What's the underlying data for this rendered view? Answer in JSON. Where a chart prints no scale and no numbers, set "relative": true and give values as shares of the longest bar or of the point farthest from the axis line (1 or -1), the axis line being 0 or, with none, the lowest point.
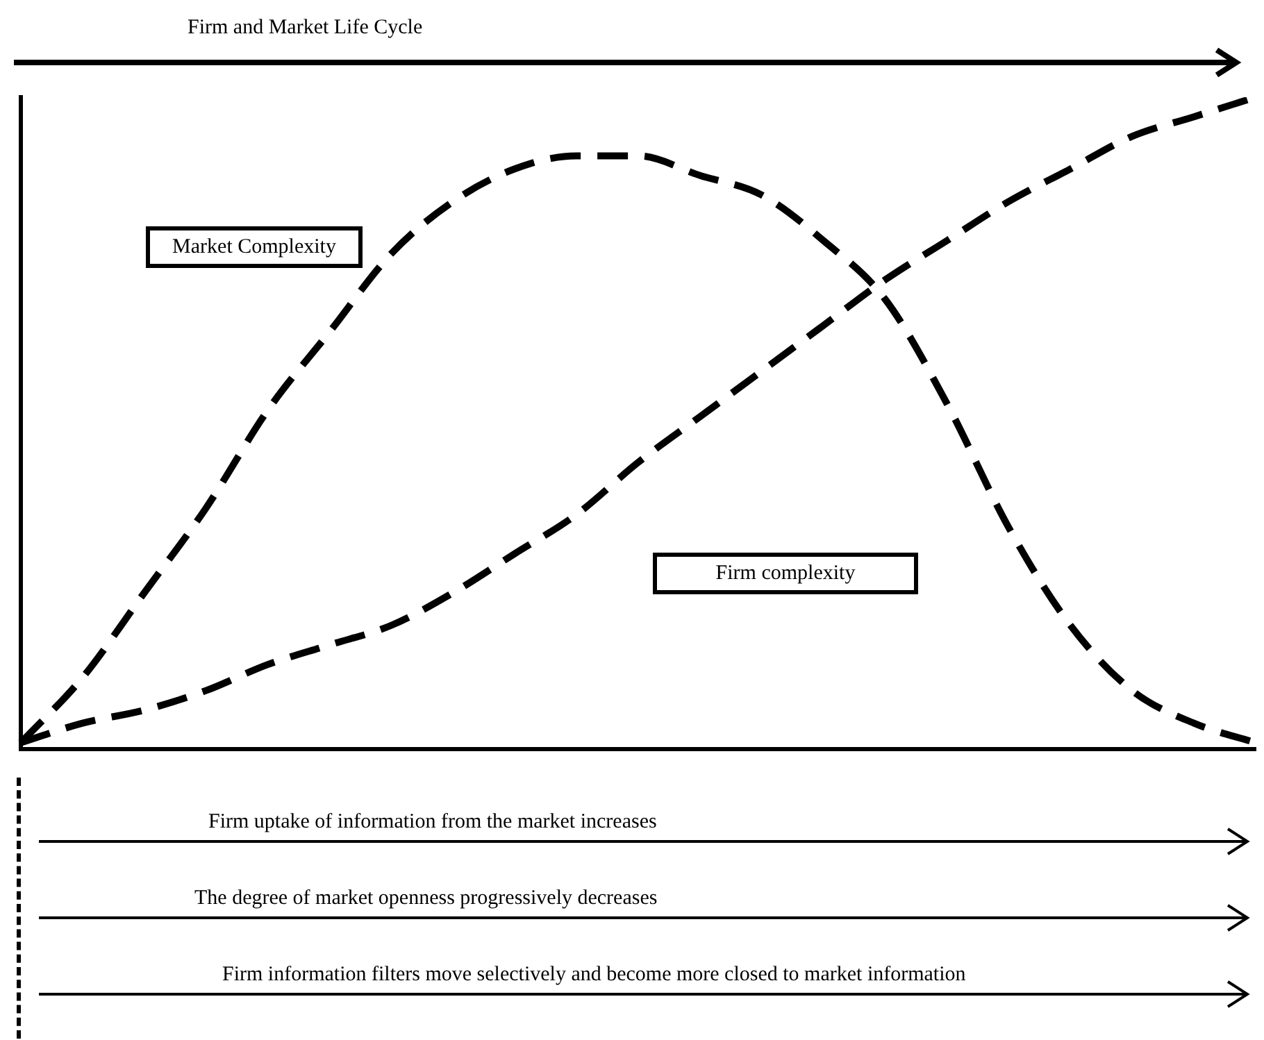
{
  "chart_data": {
    "type": "line",
    "title": "Firm and Market Life Cycle",
    "relative": true,
    "legend": false,
    "grid": false,
    "marker": "none",
    "categories": [
      null,
      null,
      null,
      null,
      null,
      null,
      null,
      null,
      null,
      null,
      null,
      null,
      null,
      null,
      null,
      null,
      null,
      null,
      null,
      null,
      null
    ],
    "series": [
      {
        "name": "Market Complexity",
        "color": "#000000",
        "line_style": "dashed",
        "values": [
          0.01,
          0.11,
          0.24,
          0.37,
          0.52,
          0.64,
          0.76,
          0.84,
          0.89,
          0.91,
          0.91,
          0.88,
          0.85,
          0.78,
          0.69,
          0.53,
          0.34,
          0.19,
          0.09,
          0.04,
          0.01
        ]
      },
      {
        "name": "Firm complexity",
        "color": "#000000",
        "line_style": "dashed",
        "values": [
          0.01,
          0.04,
          0.06,
          0.09,
          0.13,
          0.16,
          0.19,
          0.24,
          0.3,
          0.36,
          0.44,
          0.51,
          0.58,
          0.65,
          0.72,
          0.78,
          0.84,
          0.89,
          0.94,
          0.97,
          1
        ]
      }
    ],
    "annotations": [
      "Firm uptake of information from the market increases",
      "The degree of market openness progressively decreases",
      "Firm information filters move selectively and become more closed to market information"
    ]
  }
}
